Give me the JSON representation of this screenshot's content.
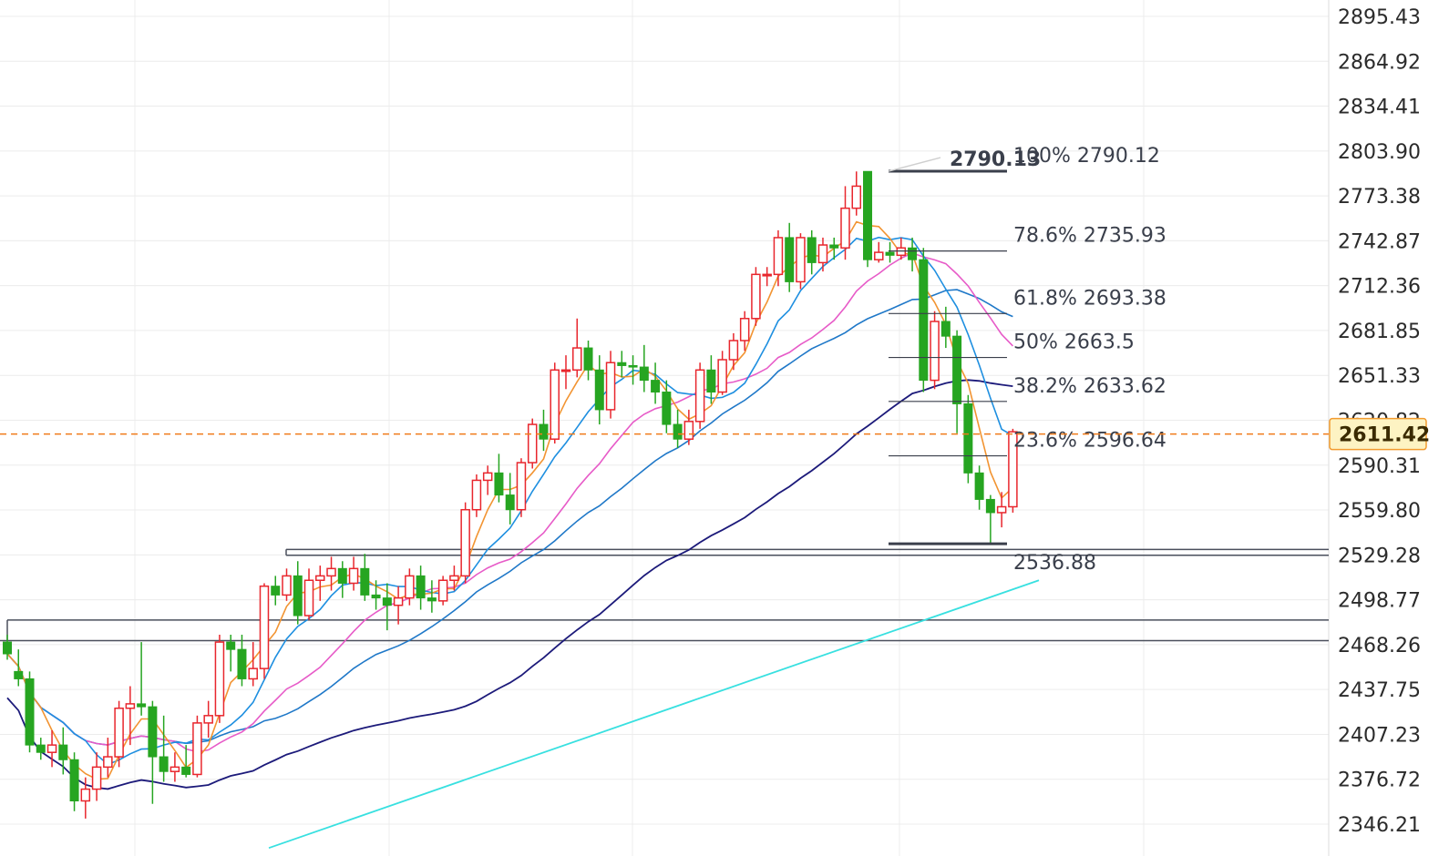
{
  "chart_data": {
    "type": "candlestick",
    "title": "",
    "ylim": [
      2335,
      2910
    ],
    "y_ticks": [
      "2895.43",
      "2864.92",
      "2834.41",
      "2803.90",
      "2773.38",
      "2742.87",
      "2712.36",
      "2681.85",
      "2651.33",
      "2620.82",
      "2590.31",
      "2559.80",
      "2529.28",
      "2498.77",
      "2468.26",
      "2437.75",
      "2407.23",
      "2376.72",
      "2346.21"
    ],
    "current_price": 2611.42,
    "current_price_label": "2611.42",
    "colors": {
      "up": "#e8262d",
      "down": "#26a521",
      "grid": "#ececec",
      "current_line": "#f07b1a",
      "ma5": "#f29432",
      "ma10": "#1e8fe0",
      "ma20": "#e75bc8",
      "ma30": "#1f78c8",
      "ma60": "#1c1a7a",
      "ma120": "#38e0e0",
      "levels": "#4a4f5c",
      "fib": "#3a3f4b"
    },
    "candles": [
      [
        2470,
        2462,
        2475,
        2458
      ],
      [
        2450,
        2445,
        2465,
        2440
      ],
      [
        2445,
        2400,
        2450,
        2395
      ],
      [
        2400,
        2395,
        2405,
        2390
      ],
      [
        2395,
        2400,
        2410,
        2385
      ],
      [
        2400,
        2390,
        2412,
        2380
      ],
      [
        2390,
        2362,
        2395,
        2355
      ],
      [
        2362,
        2370,
        2378,
        2350
      ],
      [
        2370,
        2385,
        2395,
        2362
      ],
      [
        2385,
        2392,
        2405,
        2378
      ],
      [
        2392,
        2425,
        2430,
        2385
      ],
      [
        2425,
        2428,
        2440,
        2400
      ],
      [
        2428,
        2426,
        2470,
        2420
      ],
      [
        2426,
        2392,
        2430,
        2360
      ],
      [
        2392,
        2382,
        2420,
        2375
      ],
      [
        2382,
        2385,
        2395,
        2375
      ],
      [
        2385,
        2380,
        2400,
        2378
      ],
      [
        2380,
        2415,
        2420,
        2378
      ],
      [
        2415,
        2420,
        2430,
        2405
      ],
      [
        2420,
        2470,
        2475,
        2415
      ],
      [
        2470,
        2465,
        2475,
        2450
      ],
      [
        2465,
        2445,
        2475,
        2440
      ],
      [
        2445,
        2452,
        2470,
        2440
      ],
      [
        2452,
        2508,
        2510,
        2445
      ],
      [
        2508,
        2502,
        2515,
        2495
      ],
      [
        2502,
        2515,
        2520,
        2498
      ],
      [
        2515,
        2488,
        2525,
        2482
      ],
      [
        2488,
        2512,
        2520,
        2485
      ],
      [
        2512,
        2515,
        2522,
        2498
      ],
      [
        2515,
        2520,
        2528,
        2505
      ],
      [
        2520,
        2510,
        2525,
        2500
      ],
      [
        2510,
        2520,
        2528,
        2505
      ],
      [
        2520,
        2502,
        2530,
        2498
      ],
      [
        2502,
        2500,
        2512,
        2492
      ],
      [
        2500,
        2495,
        2510,
        2478
      ],
      [
        2495,
        2500,
        2508,
        2482
      ],
      [
        2500,
        2515,
        2520,
        2495
      ],
      [
        2515,
        2500,
        2522,
        2492
      ],
      [
        2500,
        2498,
        2512,
        2490
      ],
      [
        2498,
        2512,
        2515,
        2495
      ],
      [
        2512,
        2515,
        2522,
        2505
      ],
      [
        2515,
        2560,
        2565,
        2510
      ],
      [
        2560,
        2580,
        2584,
        2555
      ],
      [
        2580,
        2585,
        2590,
        2570
      ],
      [
        2585,
        2570,
        2598,
        2565
      ],
      [
        2570,
        2560,
        2585,
        2550
      ],
      [
        2560,
        2592,
        2595,
        2555
      ],
      [
        2592,
        2618,
        2622,
        2588
      ],
      [
        2618,
        2608,
        2628,
        2600
      ],
      [
        2608,
        2655,
        2660,
        2605
      ],
      [
        2655,
        2655,
        2665,
        2642
      ],
      [
        2655,
        2670,
        2690,
        2650
      ],
      [
        2670,
        2655,
        2675,
        2648
      ],
      [
        2655,
        2628,
        2665,
        2618
      ],
      [
        2628,
        2660,
        2668,
        2622
      ],
      [
        2660,
        2658,
        2668,
        2650
      ],
      [
        2658,
        2657,
        2665,
        2645
      ],
      [
        2657,
        2648,
        2672,
        2640
      ],
      [
        2648,
        2640,
        2660,
        2632
      ],
      [
        2640,
        2618,
        2648,
        2612
      ],
      [
        2618,
        2608,
        2628,
        2602
      ],
      [
        2608,
        2620,
        2628,
        2604
      ],
      [
        2620,
        2655,
        2660,
        2615
      ],
      [
        2655,
        2640,
        2665,
        2632
      ],
      [
        2640,
        2662,
        2668,
        2638
      ],
      [
        2662,
        2675,
        2680,
        2655
      ],
      [
        2675,
        2690,
        2695,
        2668
      ],
      [
        2690,
        2720,
        2725,
        2685
      ],
      [
        2720,
        2720,
        2725,
        2712
      ],
      [
        2720,
        2745,
        2750,
        2712
      ],
      [
        2745,
        2715,
        2755,
        2708
      ],
      [
        2715,
        2745,
        2748,
        2710
      ],
      [
        2745,
        2728,
        2750,
        2720
      ],
      [
        2728,
        2740,
        2745,
        2722
      ],
      [
        2740,
        2738,
        2745,
        2730
      ],
      [
        2738,
        2765,
        2780,
        2730
      ],
      [
        2765,
        2780,
        2790,
        2760
      ],
      [
        2790,
        2730,
        2790,
        2725
      ],
      [
        2730,
        2735,
        2742,
        2728
      ],
      [
        2735,
        2733,
        2742,
        2728
      ],
      [
        2733,
        2738,
        2745,
        2730
      ],
      [
        2738,
        2730,
        2745,
        2722
      ],
      [
        2730,
        2648,
        2738,
        2640
      ],
      [
        2648,
        2688,
        2695,
        2642
      ],
      [
        2688,
        2678,
        2698,
        2670
      ],
      [
        2678,
        2632,
        2682,
        2612
      ],
      [
        2632,
        2585,
        2638,
        2578
      ],
      [
        2585,
        2567,
        2590,
        2560
      ],
      [
        2567,
        2558,
        2570,
        2537
      ],
      [
        2558,
        2562,
        2572,
        2548
      ],
      [
        2562,
        2613,
        2615,
        2558
      ]
    ],
    "fib_levels": [
      {
        "label": "100% 2790.12",
        "value": 2790.12
      },
      {
        "label": "78.6% 2735.93",
        "value": 2735.93
      },
      {
        "label": "61.8% 2693.38",
        "value": 2693.38
      },
      {
        "label": "50% 2663.5",
        "value": 2663.5
      },
      {
        "label": "38.2% 2633.62",
        "value": 2633.62
      },
      {
        "label": "23.6% 2596.64",
        "value": 2596.64
      }
    ],
    "fib_high_label": "2790.13",
    "fib_low_label": "2536.88",
    "fib_high": 2790.13,
    "fib_low": 2536.88,
    "horizontal_levels": [
      2533,
      2529,
      2485,
      2471
    ],
    "ma120": {
      "start": 2330,
      "end": 2512
    }
  }
}
